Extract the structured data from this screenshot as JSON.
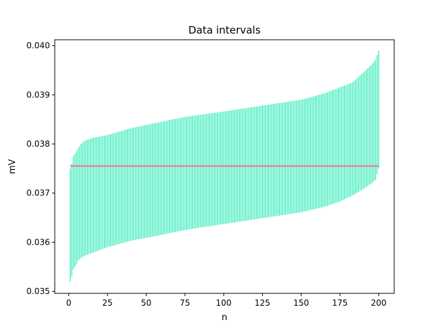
{
  "chart_data": {
    "type": "errorbar",
    "title": "Data intervals",
    "xlabel": "n",
    "ylabel": "mV",
    "xlim": [
      -9,
      210
    ],
    "ylim": [
      0.03496,
      0.04012
    ],
    "xticks": [
      0,
      25,
      50,
      75,
      100,
      125,
      150,
      175,
      200
    ],
    "xtick_labels": [
      "0",
      "25",
      "50",
      "75",
      "100",
      "125",
      "150",
      "175",
      "200"
    ],
    "yticks": [
      0.035,
      0.036,
      0.037,
      0.038,
      0.039,
      0.04
    ],
    "ytick_labels": [
      "0.035",
      "0.036",
      "0.037",
      "0.038",
      "0.039",
      "0.040"
    ],
    "grid": false,
    "n_points": 200,
    "interval_color": "#00e6a8",
    "reference_line": {
      "y": 0.03755,
      "x_start": 1,
      "x_end": 200,
      "color": "#ff6b8a"
    },
    "interval_profile": [
      {
        "n": 1,
        "lower": 0.0352,
        "upper": 0.0375
      },
      {
        "n": 2,
        "lower": 0.0353,
        "upper": 0.0376
      },
      {
        "n": 3,
        "lower": 0.03545,
        "upper": 0.03775
      },
      {
        "n": 4,
        "lower": 0.0355,
        "upper": 0.0378
      },
      {
        "n": 5,
        "lower": 0.03555,
        "upper": 0.03785
      },
      {
        "n": 6,
        "lower": 0.03562,
        "upper": 0.0379
      },
      {
        "n": 8,
        "lower": 0.03568,
        "upper": 0.038
      },
      {
        "n": 10,
        "lower": 0.03572,
        "upper": 0.03806
      },
      {
        "n": 15,
        "lower": 0.03578,
        "upper": 0.03812
      },
      {
        "n": 25,
        "lower": 0.0359,
        "upper": 0.03818
      },
      {
        "n": 40,
        "lower": 0.03603,
        "upper": 0.03832
      },
      {
        "n": 55,
        "lower": 0.03612,
        "upper": 0.03842
      },
      {
        "n": 75,
        "lower": 0.03625,
        "upper": 0.03855
      },
      {
        "n": 100,
        "lower": 0.03637,
        "upper": 0.03866
      },
      {
        "n": 125,
        "lower": 0.03649,
        "upper": 0.03878
      },
      {
        "n": 150,
        "lower": 0.03661,
        "upper": 0.0389
      },
      {
        "n": 165,
        "lower": 0.03672,
        "upper": 0.03903
      },
      {
        "n": 175,
        "lower": 0.03683,
        "upper": 0.03915
      },
      {
        "n": 183,
        "lower": 0.03695,
        "upper": 0.03925
      },
      {
        "n": 190,
        "lower": 0.03708,
        "upper": 0.03945
      },
      {
        "n": 195,
        "lower": 0.03719,
        "upper": 0.0396
      },
      {
        "n": 198,
        "lower": 0.03727,
        "upper": 0.03972
      },
      {
        "n": 200,
        "lower": 0.0375,
        "upper": 0.0399
      }
    ]
  }
}
